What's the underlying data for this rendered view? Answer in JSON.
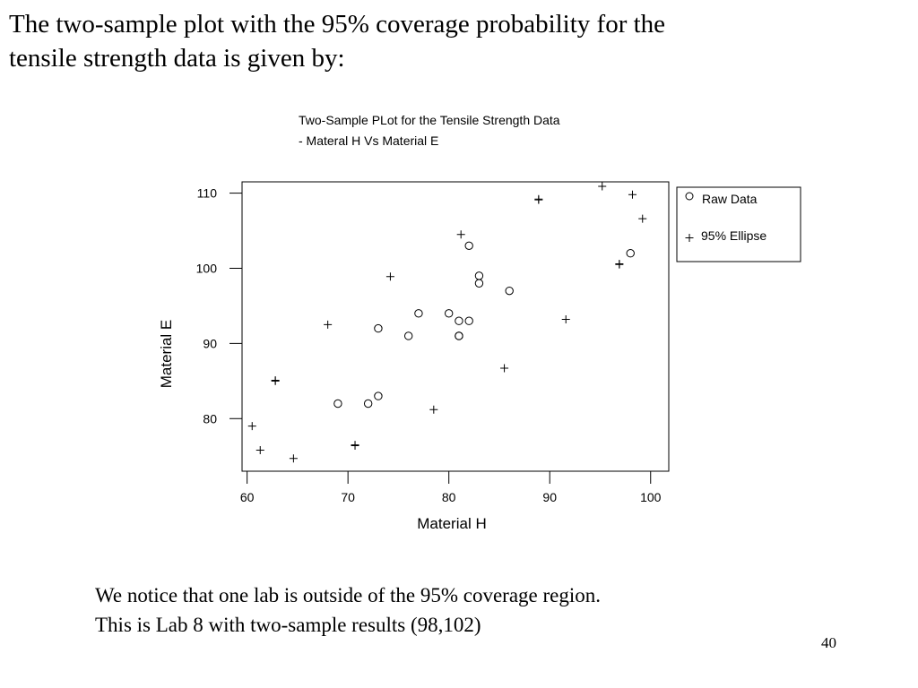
{
  "heading": {
    "line1": "The two-sample plot with the 95% coverage probability for the",
    "line2": "tensile strength data is given by:"
  },
  "chart_data": {
    "type": "scatter",
    "title_line1": "Two-Sample PLot for the Tensile Strength Data",
    "title_line2": "- Materal H Vs Material E",
    "xlabel": "Material H",
    "ylabel": "Material E",
    "xlim": [
      59.5,
      101.8
    ],
    "ylim": [
      73.0,
      111.5
    ],
    "xticks": [
      60,
      70,
      80,
      90,
      100
    ],
    "yticks": [
      80,
      90,
      100,
      110
    ],
    "legend_placement": "outside-right-top",
    "grid": false,
    "series": [
      {
        "name": "Raw Data",
        "marker": "circle",
        "points": [
          [
            69,
            82
          ],
          [
            72,
            82
          ],
          [
            73,
            83
          ],
          [
            73,
            92
          ],
          [
            76,
            91
          ],
          [
            77,
            94
          ],
          [
            80,
            94
          ],
          [
            81,
            93
          ],
          [
            81,
            91
          ],
          [
            81,
            91
          ],
          [
            82,
            93
          ],
          [
            82,
            103
          ],
          [
            83,
            99
          ],
          [
            83,
            98
          ],
          [
            86,
            97
          ],
          [
            98,
            102
          ]
        ]
      },
      {
        "name": "95% Ellipse",
        "marker": "plus",
        "points": [
          [
            60.5,
            79
          ],
          [
            61.3,
            75.8
          ],
          [
            62.8,
            85
          ],
          [
            62.8,
            85.1
          ],
          [
            64.6,
            74.7
          ],
          [
            68,
            92.5
          ],
          [
            70.7,
            76.4
          ],
          [
            70.7,
            76.5
          ],
          [
            74.2,
            98.9
          ],
          [
            78.5,
            81.2
          ],
          [
            81.2,
            104.5
          ],
          [
            85.5,
            86.7
          ],
          [
            88.9,
            109.1
          ],
          [
            88.9,
            109.2
          ],
          [
            91.6,
            93.2
          ],
          [
            95.2,
            110.9
          ],
          [
            96.9,
            100.5
          ],
          [
            96.9,
            100.6
          ],
          [
            98.2,
            109.8
          ],
          [
            99.2,
            106.6
          ]
        ]
      }
    ]
  },
  "note": {
    "line1": "We notice that one lab is outside of the 95% coverage region.",
    "line2": "This is Lab 8 with two-sample results (98,102)"
  },
  "page_number": "40"
}
